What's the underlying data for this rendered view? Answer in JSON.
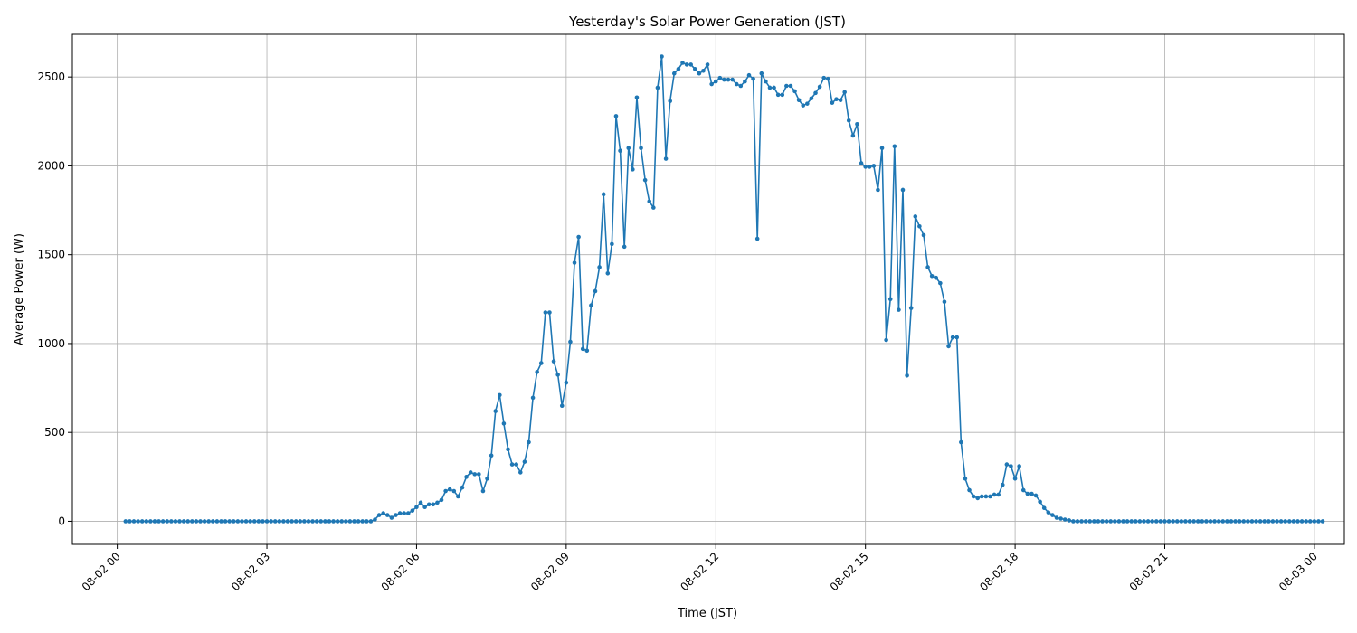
{
  "chart_data": {
    "type": "line",
    "title": "Yesterday's Solar Power Generation (JST)",
    "xlabel": "Time (JST)",
    "ylabel": "Average Power (W)",
    "x_unit": "hours since 08-02 00:00",
    "xlim": [
      -0.9,
      24.6
    ],
    "ylim": [
      -130,
      2740
    ],
    "grid": true,
    "series_color": "#1f77b4",
    "x_ticks": [
      {
        "value": 0,
        "label": "08-02 00"
      },
      {
        "value": 3,
        "label": "08-02 03"
      },
      {
        "value": 6,
        "label": "08-02 06"
      },
      {
        "value": 9,
        "label": "08-02 09"
      },
      {
        "value": 12,
        "label": "08-02 12"
      },
      {
        "value": 15,
        "label": "08-02 15"
      },
      {
        "value": 18,
        "label": "08-02 18"
      },
      {
        "value": 21,
        "label": "08-02 21"
      },
      {
        "value": 24,
        "label": "08-03 00"
      }
    ],
    "y_ticks": [
      {
        "value": 0,
        "label": "0"
      },
      {
        "value": 500,
        "label": "500"
      },
      {
        "value": 1000,
        "label": "1000"
      },
      {
        "value": 1500,
        "label": "1500"
      },
      {
        "value": 2000,
        "label": "2000"
      },
      {
        "value": 2500,
        "label": "2500"
      }
    ],
    "series": [
      {
        "name": "Average Power (W)",
        "x_start": 0.1667,
        "x_step": 0.08333,
        "values": [
          0,
          0,
          0,
          0,
          0,
          0,
          0,
          0,
          0,
          0,
          0,
          0,
          0,
          0,
          0,
          0,
          0,
          0,
          0,
          0,
          0,
          0,
          0,
          0,
          0,
          0,
          0,
          0,
          0,
          0,
          0,
          0,
          0,
          0,
          0,
          0,
          0,
          0,
          0,
          0,
          0,
          0,
          0,
          0,
          0,
          0,
          0,
          0,
          0,
          0,
          0,
          0,
          0,
          0,
          0,
          0,
          0,
          0,
          0,
          0,
          10,
          35,
          45,
          35,
          20,
          35,
          45,
          45,
          45,
          60,
          80,
          105,
          80,
          95,
          95,
          105,
          120,
          170,
          180,
          170,
          140,
          190,
          250,
          275,
          265,
          265,
          170,
          240,
          370,
          620,
          710,
          550,
          405,
          320,
          320,
          275,
          335,
          445,
          695,
          840,
          890,
          1175,
          1175,
          900,
          825,
          650,
          780,
          1010,
          1455,
          1600,
          970,
          960,
          1215,
          1295,
          1430,
          1840,
          1395,
          1560,
          2280,
          2085,
          1545,
          2100,
          1980,
          2385,
          2100,
          1920,
          1800,
          1765,
          2440,
          2615,
          2040,
          2365,
          2520,
          2545,
          2580,
          2570,
          2570,
          2545,
          2520,
          2535,
          2570,
          2460,
          2475,
          2495,
          2485,
          2485,
          2485,
          2460,
          2450,
          2475,
          2510,
          2490,
          1590,
          2520,
          2475,
          2440,
          2440,
          2400,
          2400,
          2450,
          2450,
          2420,
          2370,
          2340,
          2350,
          2380,
          2410,
          2445,
          2495,
          2490,
          2355,
          2375,
          2370,
          2415,
          2255,
          2170,
          2235,
          2015,
          1995,
          1995,
          2000,
          1865,
          2100,
          1020,
          1250,
          2110,
          1190,
          1865,
          820,
          1200,
          1715,
          1660,
          1610,
          1430,
          1380,
          1370,
          1340,
          1235,
          985,
          1035,
          1035,
          445,
          240,
          175,
          140,
          130,
          140,
          140,
          140,
          150,
          150,
          205,
          320,
          310,
          240,
          310,
          175,
          155,
          155,
          145,
          110,
          75,
          50,
          35,
          20,
          15,
          10,
          5,
          0,
          0,
          0,
          0,
          0,
          0,
          0,
          0,
          0,
          0,
          0,
          0,
          0,
          0,
          0,
          0,
          0,
          0,
          0,
          0,
          0,
          0,
          0,
          0,
          0,
          0,
          0,
          0,
          0,
          0,
          0,
          0,
          0,
          0,
          0,
          0,
          0,
          0,
          0,
          0,
          0,
          0,
          0,
          0,
          0,
          0,
          0,
          0,
          0,
          0,
          0,
          0,
          0,
          0,
          0,
          0,
          0,
          0,
          0,
          0,
          0
        ]
      }
    ]
  }
}
